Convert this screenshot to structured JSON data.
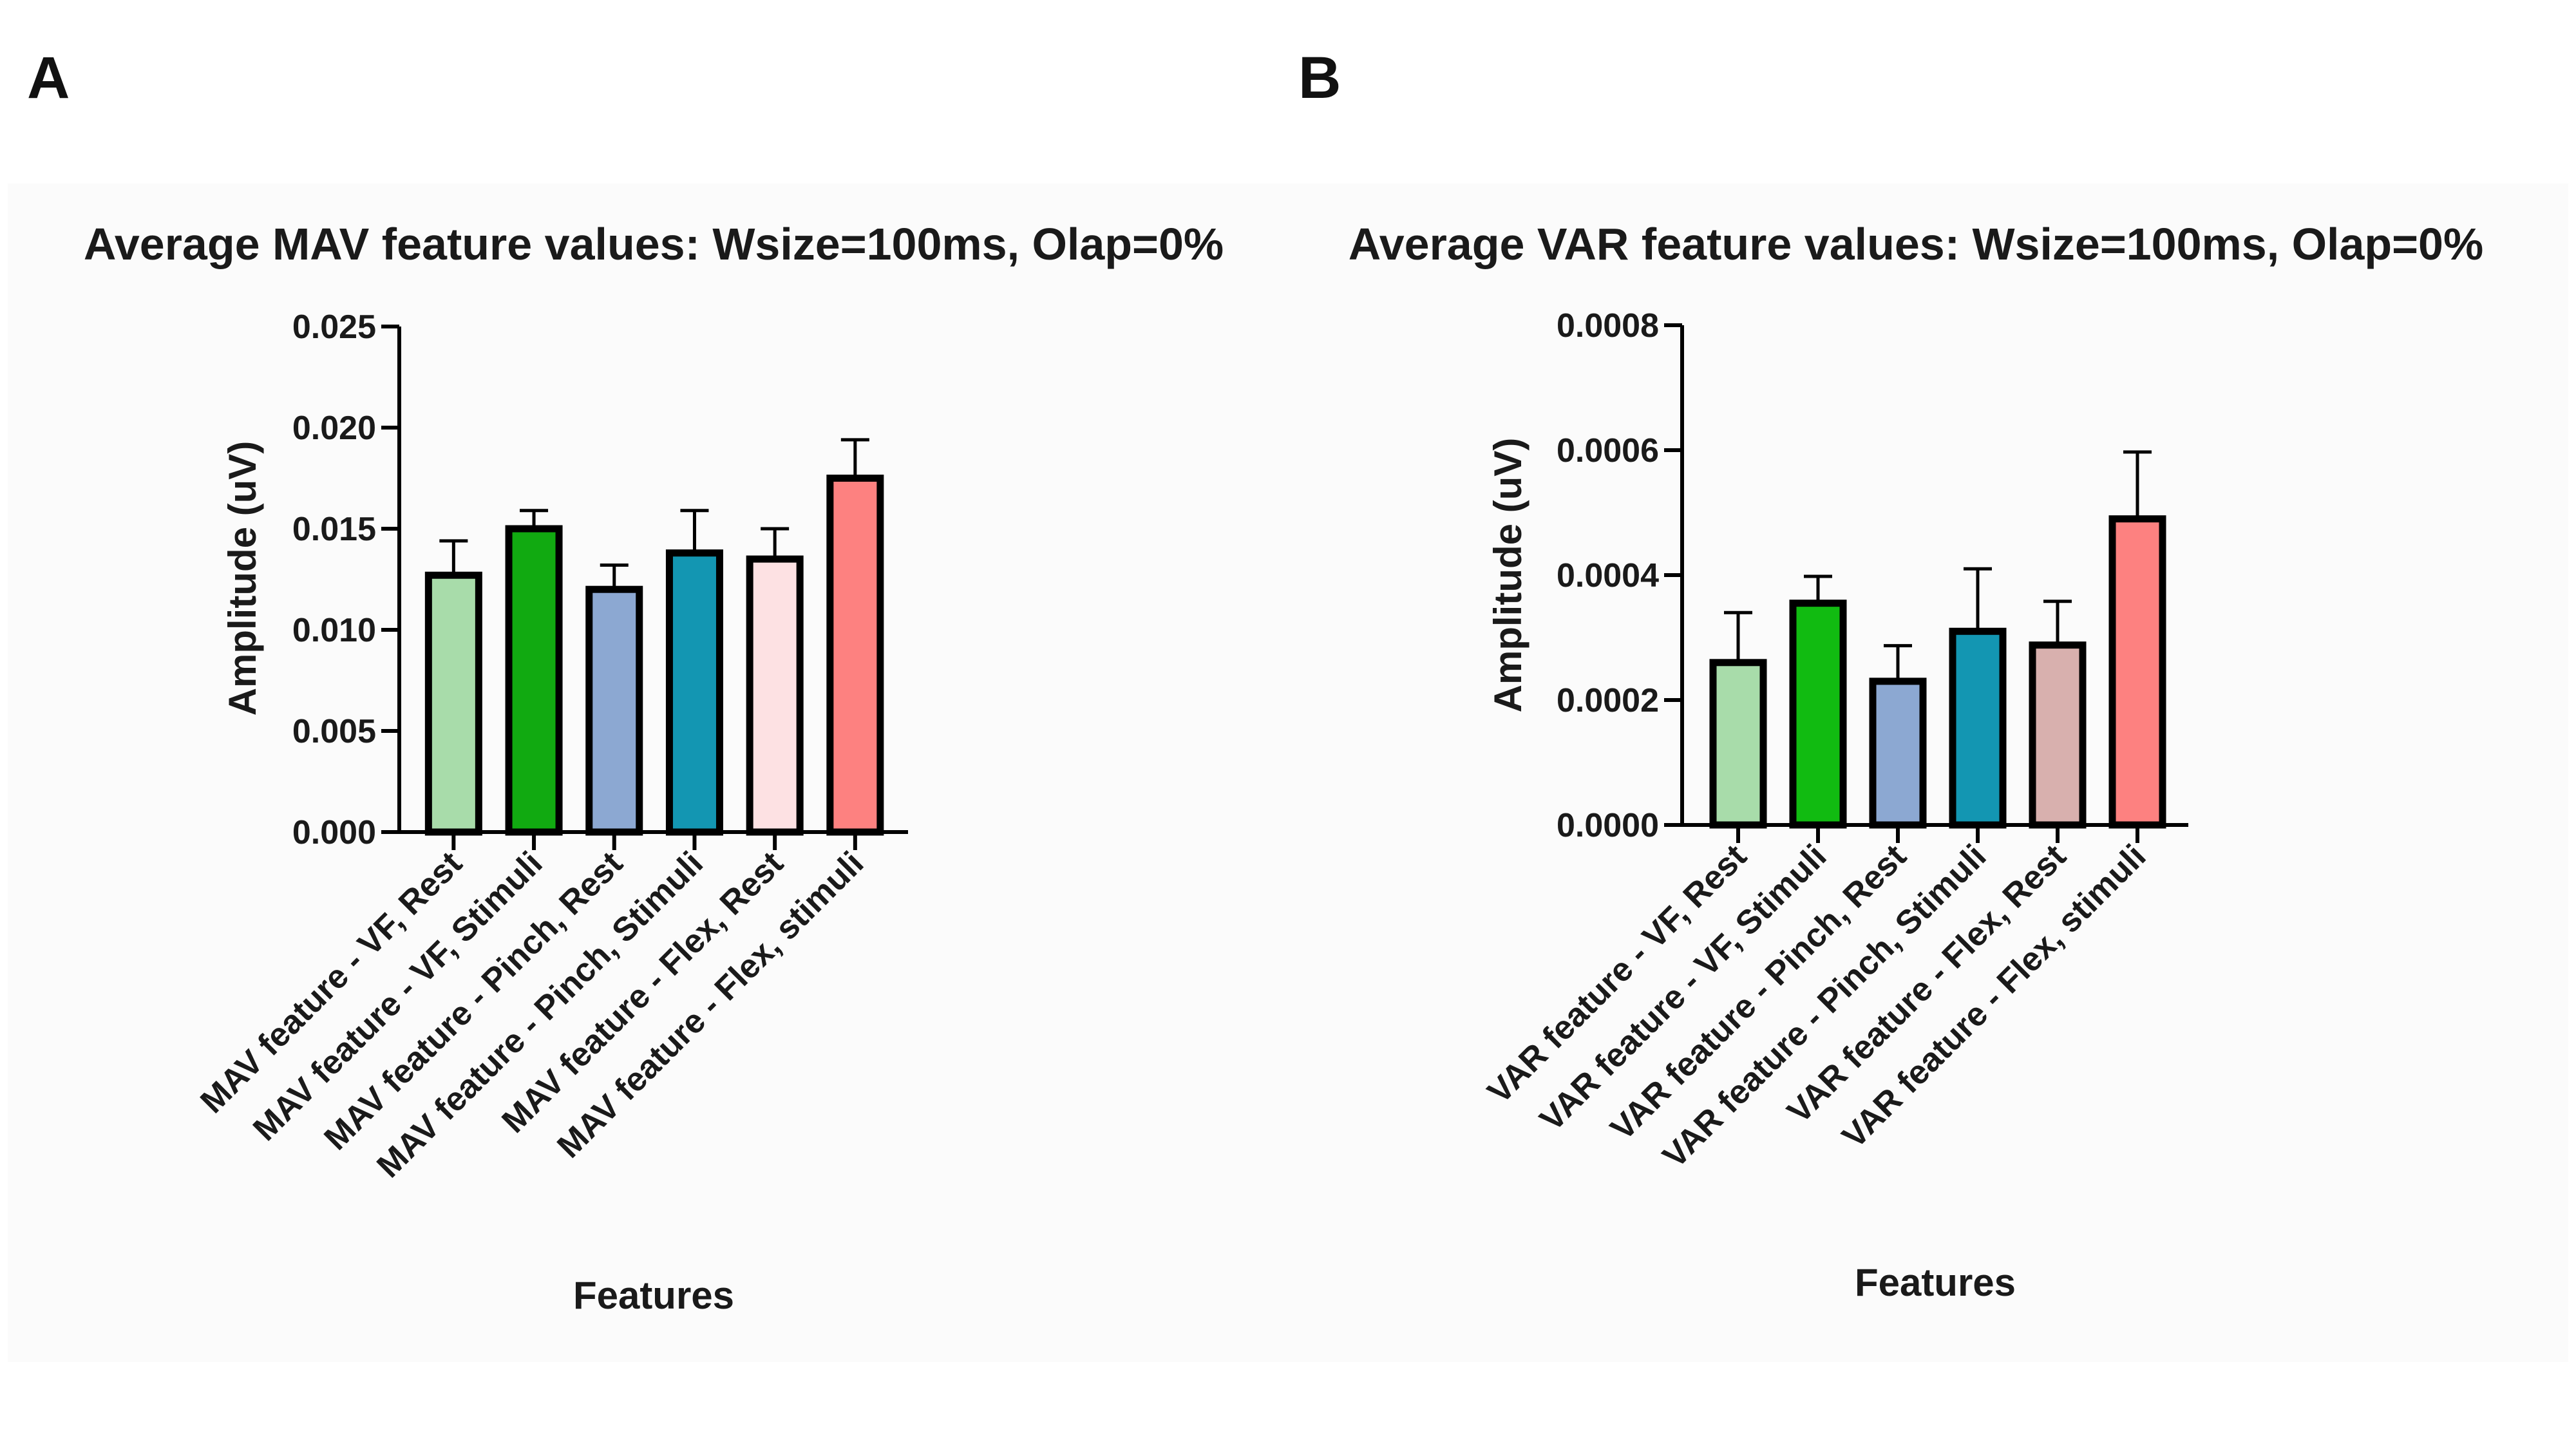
{
  "panels": [
    "A",
    "B"
  ],
  "chart_data": [
    {
      "type": "bar",
      "title": "Average MAV feature values: Wsize=100ms, Olap=0%",
      "xlabel": "Features",
      "ylabel": "Amplitude (uV)",
      "ylim": [
        0,
        0.025
      ],
      "yticks": [
        "0.000",
        "0.005",
        "0.010",
        "0.015",
        "0.020",
        "0.025"
      ],
      "categories": [
        "MAV feature - VF, Rest",
        "MAV feature - VF, Stimuli",
        "MAV feature - Pinch, Rest",
        "MAV feature - Pinch, Stimuli",
        "MAV feature - Flex, Rest",
        "MAV feature - Flex, stimuli"
      ],
      "values": [
        0.0127,
        0.015,
        0.012,
        0.0138,
        0.0135,
        0.0175
      ],
      "errors": [
        0.0017,
        0.0009,
        0.0012,
        0.0021,
        0.0015,
        0.0019
      ],
      "colors": [
        "#a8dcaa",
        "#11aa11",
        "#8ca8d2",
        "#1396b2",
        "#fde1e3",
        "#fd8180"
      ],
      "grid": false
    },
    {
      "type": "bar",
      "title": "Average VAR feature values: Wsize=100ms, Olap=0%",
      "xlabel": "Features",
      "ylabel": "Amplitude (uV)",
      "ylim": [
        0,
        0.0008
      ],
      "yticks": [
        "0.0000",
        "0.0002",
        "0.0004",
        "0.0006",
        "0.0008"
      ],
      "categories": [
        "VAR feature - VF, Rest",
        "VAR feature - VF, Stimuli",
        "VAR feature - Pinch, Rest",
        "VAR feature - Pinch, Stimuli",
        "VAR feature - Flex, Rest",
        "VAR feature - Flex, stimuli"
      ],
      "values": [
        0.00026,
        0.000355,
        0.00023,
        0.00031,
        0.000288,
        0.00049
      ],
      "errors": [
        8e-05,
        4.3e-05,
        5.7e-05,
        0.0001,
        7e-05,
        0.000107
      ],
      "colors": [
        "#a8dcaa",
        "#11bb11",
        "#8ca8d2",
        "#1396b2",
        "#d8b0ae",
        "#fd8180"
      ],
      "grid": false
    }
  ]
}
